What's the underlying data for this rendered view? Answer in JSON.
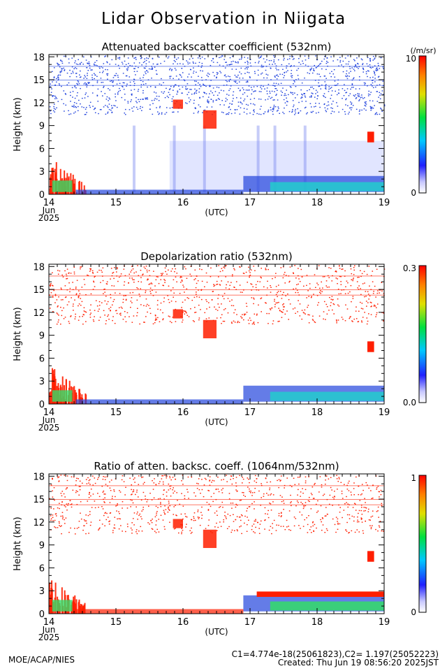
{
  "page": {
    "title": "Lidar Observation in Niigata",
    "calibration": "C1=4.774e-18(25061823),C2= 1.197(25052223)",
    "created": "Created: Thu Jun 19 08:56:20 2025JST",
    "organization": "MOE/ACAP/NIES"
  },
  "colors": {
    "red": "#ff1e00",
    "blue": "#2244dd",
    "cyan": "#22cccc",
    "green": "#33dd66",
    "white": "#ffffff"
  },
  "chart_data": [
    {
      "type": "heatmap",
      "title": "Attenuated backscatter coefficient (532nm)",
      "ylabel": "Height (km)",
      "xlabel": "(UTC)",
      "x_ticks": [
        "14",
        "15",
        "16",
        "17",
        "18",
        "19"
      ],
      "x_start_month": "Jun",
      "x_start_year": "2025",
      "y_ticks": [
        "0",
        "3",
        "6",
        "9",
        "12",
        "15",
        "18"
      ],
      "xlim": [
        14,
        19
      ],
      "ylim": [
        0,
        18.3
      ],
      "colorbar": {
        "min_label": "0",
        "max_label": "10",
        "unit": "(/m/sr)",
        "range": [
          0,
          10
        ]
      }
    },
    {
      "type": "heatmap",
      "title": "Depolarization ratio (532nm)",
      "ylabel": "Height (km)",
      "xlabel": "(UTC)",
      "x_ticks": [
        "14",
        "15",
        "16",
        "17",
        "18",
        "19"
      ],
      "x_start_month": "Jun",
      "x_start_year": "2025",
      "y_ticks": [
        "0",
        "3",
        "6",
        "9",
        "12",
        "15",
        "18"
      ],
      "xlim": [
        14,
        19
      ],
      "ylim": [
        0,
        18.3
      ],
      "colorbar": {
        "min_label": "0.0",
        "max_label": "0.3",
        "unit": "",
        "range": [
          0.0,
          0.3
        ]
      }
    },
    {
      "type": "heatmap",
      "title": "Ratio of atten. backsc. coeff. (1064nm/532nm)",
      "ylabel": "Height (km)",
      "xlabel": "(UTC)",
      "x_ticks": [
        "14",
        "15",
        "16",
        "17",
        "18",
        "19"
      ],
      "x_start_month": "Jun",
      "x_start_year": "2025",
      "y_ticks": [
        "0",
        "3",
        "6",
        "9",
        "12",
        "15",
        "18"
      ],
      "xlim": [
        14,
        19
      ],
      "ylim": [
        0,
        18.3
      ],
      "colorbar": {
        "min_label": "0",
        "max_label": "1",
        "unit": "",
        "range": [
          0,
          1
        ]
      }
    }
  ]
}
